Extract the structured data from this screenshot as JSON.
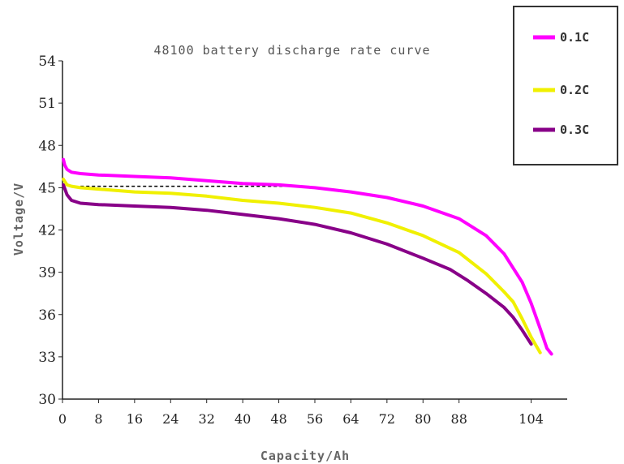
{
  "chart_data": {
    "type": "line",
    "title": "48100 battery discharge rate curve",
    "xlabel": "Capacity/Ah",
    "ylabel": "Voltage/V",
    "xlim": [
      0,
      112
    ],
    "ylim": [
      30,
      54
    ],
    "x_ticks": [
      "0",
      "8",
      "16",
      "24",
      "32",
      "40",
      "48",
      "56",
      "64",
      "72",
      "80",
      "88",
      "104"
    ],
    "y_ticks": [
      "30",
      "33",
      "36",
      "39",
      "42",
      "45",
      "48",
      "51",
      "54"
    ],
    "grid": false,
    "legend_position": "top-right",
    "series": [
      {
        "name": "0.1C",
        "color": "#ff00ff",
        "x": [
          0.2,
          0.5,
          1,
          2,
          4,
          8,
          16,
          24,
          32,
          40,
          48,
          56,
          64,
          72,
          80,
          88,
          94,
          98,
          102,
          104,
          106,
          107.5,
          108.5
        ],
        "y": [
          47.0,
          46.6,
          46.3,
          46.1,
          46.0,
          45.9,
          45.8,
          45.7,
          45.5,
          45.3,
          45.2,
          45.0,
          44.7,
          44.3,
          43.7,
          42.8,
          41.6,
          40.3,
          38.3,
          36.8,
          35.0,
          33.6,
          33.2
        ]
      },
      {
        "name": "0.2C",
        "color": "#f0f000",
        "x": [
          0.2,
          1,
          2,
          4,
          8,
          16,
          24,
          32,
          40,
          48,
          56,
          64,
          72,
          80,
          88,
          94,
          98,
          100,
          102,
          104,
          106
        ],
        "y": [
          45.6,
          45.2,
          45.1,
          45.0,
          44.9,
          44.7,
          44.6,
          44.4,
          44.1,
          43.9,
          43.6,
          43.2,
          42.5,
          41.6,
          40.4,
          38.9,
          37.6,
          36.9,
          35.7,
          34.4,
          33.3
        ]
      },
      {
        "name": "0.3C",
        "color": "#880088",
        "x": [
          0.2,
          1,
          2,
          4,
          8,
          16,
          24,
          32,
          40,
          48,
          56,
          64,
          72,
          80,
          86,
          90,
          94,
          98,
          100,
          102,
          104
        ],
        "y": [
          45.2,
          44.5,
          44.1,
          43.9,
          43.8,
          43.7,
          43.6,
          43.4,
          43.1,
          42.8,
          42.4,
          41.8,
          41.0,
          40.0,
          39.2,
          38.4,
          37.5,
          36.5,
          35.8,
          34.9,
          33.9
        ]
      }
    ],
    "annotations": [
      {
        "type": "dashed-line",
        "y": 45.1,
        "x_from": 4,
        "x_to": 50,
        "color": "#000000"
      }
    ]
  }
}
